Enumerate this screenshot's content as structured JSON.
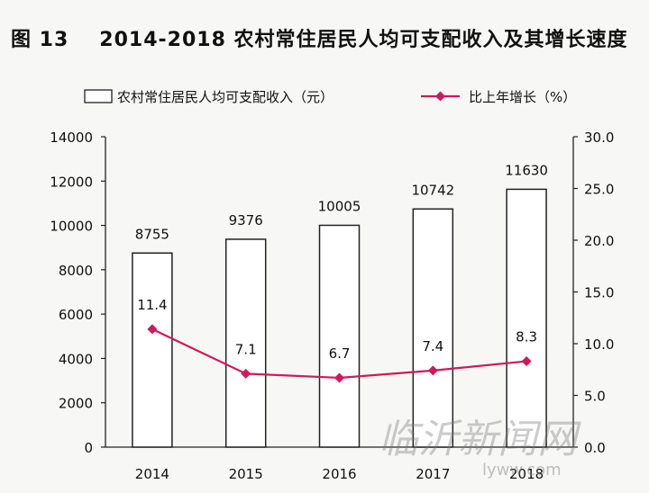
{
  "figure": {
    "label": "图 13",
    "title": "2014-2018 农村常住居民人均可支配收入及其增长速度"
  },
  "chart_data": {
    "type": "bar",
    "categories": [
      "2014",
      "2015",
      "2016",
      "2017",
      "2018"
    ],
    "series": [
      {
        "name": "农村常住居民人均可支配收入（元）",
        "type": "bar",
        "axis": "left",
        "values": [
          8755,
          9376,
          10005,
          10742,
          11630
        ],
        "data_labels": [
          "8755",
          "9376",
          "10005",
          "10742",
          "11630"
        ]
      },
      {
        "name": "比上年增长（%）",
        "type": "line",
        "axis": "right",
        "values": [
          11.4,
          7.1,
          6.7,
          7.4,
          8.3
        ],
        "data_labels": [
          "11.4",
          "7.1",
          "6.7",
          "7.4",
          "8.3"
        ]
      }
    ],
    "left_axis": {
      "ylim": [
        0,
        14000
      ],
      "ticks": [
        "0",
        "2000",
        "4000",
        "6000",
        "8000",
        "10000",
        "12000",
        "14000"
      ]
    },
    "right_axis": {
      "ylim": [
        0,
        30
      ],
      "ticks": [
        "0.0",
        "5.0",
        "10.0",
        "15.0",
        "20.0",
        "25.0",
        "30.0"
      ]
    },
    "legend_position": "top",
    "line_color": "#d0185c",
    "bar_fill": "#ffffff",
    "bar_stroke": "#222222"
  },
  "watermark": {
    "text": "临沂新闻网",
    "url": "lyww.com"
  }
}
